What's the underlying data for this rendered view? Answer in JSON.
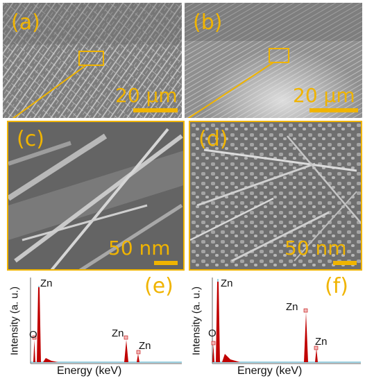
{
  "panels": {
    "a": {
      "label": "(a)",
      "scale": "20 μm"
    },
    "b": {
      "label": "(b)",
      "scale": "20 μm"
    },
    "c": {
      "label": "(c)",
      "scale": "50 nm"
    },
    "d": {
      "label": "(d)",
      "scale": "50 nm"
    }
  },
  "eds": {
    "e": {
      "label": "(e)",
      "ylabel": "Intensity (a. u.)",
      "xlabel": "Energy (keV)",
      "peaks": [
        "Zn",
        "O",
        "Zn",
        "Zn"
      ]
    },
    "f": {
      "label": "(f)",
      "ylabel": "Intensity (a. u.)",
      "xlabel": "Energy (keV)",
      "peaks": [
        "Zn",
        "O",
        "Zn",
        "Zn"
      ]
    }
  },
  "colors": {
    "accent": "#f0b400",
    "peak": "#c00000",
    "baseline": "#3aa0c0"
  }
}
